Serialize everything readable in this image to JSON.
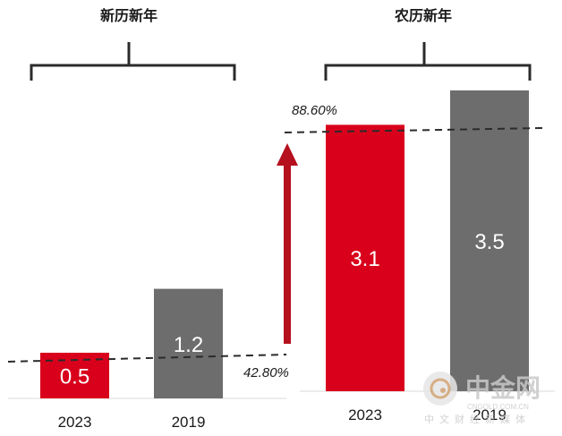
{
  "chart_data": {
    "type": "bar",
    "groups": [
      {
        "title": "新历新年",
        "categories": [
          "2023",
          "2019"
        ],
        "values": [
          0.5,
          1.2
        ],
        "colors": [
          "#d9001b",
          "#6d6d6d"
        ]
      },
      {
        "title": "农历新年",
        "categories": [
          "2023",
          "2019"
        ],
        "values": [
          3.1,
          3.5
        ],
        "colors": [
          "#d9001b",
          "#6d6d6d"
        ]
      }
    ],
    "annotations": {
      "low_ratio": "42.80%",
      "high_ratio": "88.60%"
    },
    "arrow_color": "#b5101e",
    "grid": false,
    "legend": "none"
  },
  "watermark": {
    "name": "中金网",
    "url": "CNGOLD.COM.CN",
    "tagline": "中文财经新媒体"
  }
}
